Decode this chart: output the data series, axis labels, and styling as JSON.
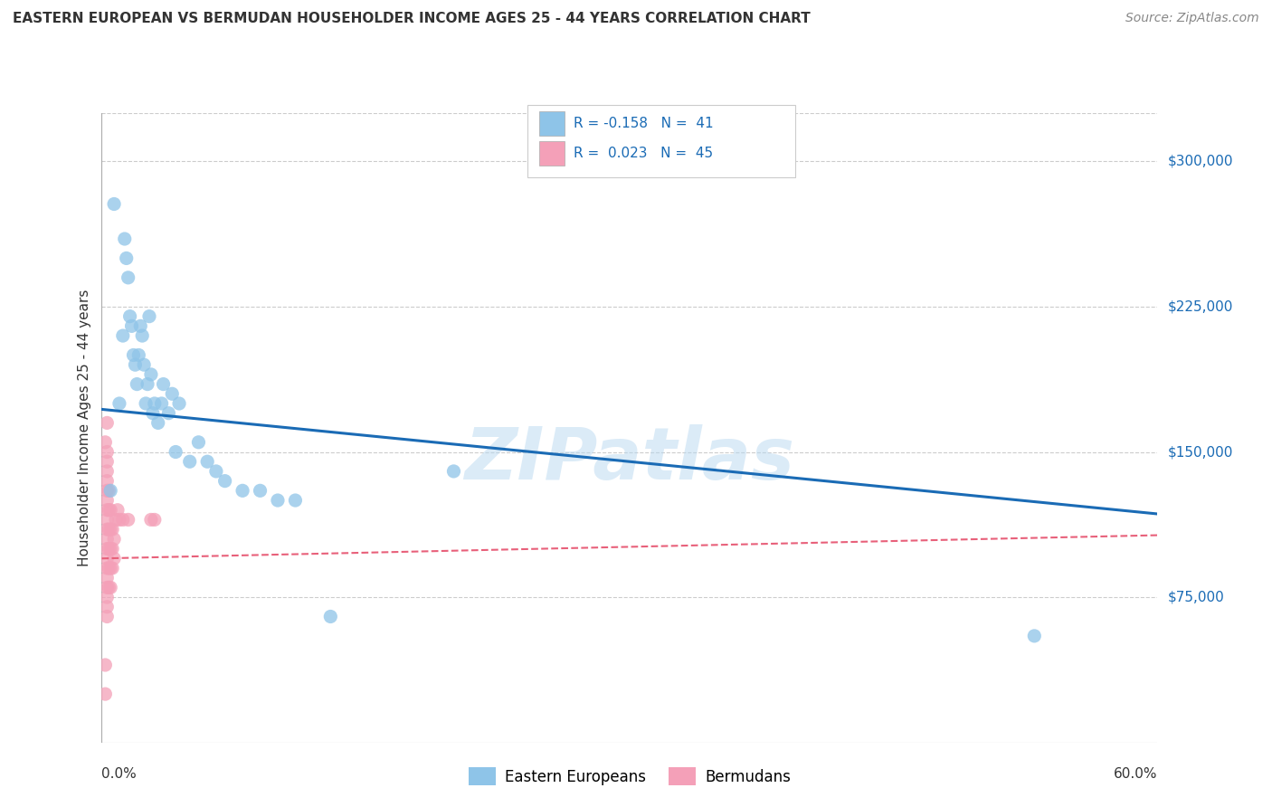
{
  "title": "EASTERN EUROPEAN VS BERMUDAN HOUSEHOLDER INCOME AGES 25 - 44 YEARS CORRELATION CHART",
  "source": "Source: ZipAtlas.com",
  "ylabel": "Householder Income Ages 25 - 44 years",
  "ytick_labels": [
    "$75,000",
    "$150,000",
    "$225,000",
    "$300,000"
  ],
  "ytick_values": [
    75000,
    150000,
    225000,
    300000
  ],
  "ylim": [
    0,
    325000
  ],
  "xlim": [
    0.0,
    0.6
  ],
  "legend_label1": "Eastern Europeans",
  "legend_label2": "Bermudans",
  "legend_R1": "R = -0.158",
  "legend_N1": "N =  41",
  "legend_R2": "R =  0.023",
  "legend_N2": "N =  45",
  "watermark": "ZIPatlas",
  "blue_color": "#8ec4e8",
  "pink_color": "#f4a0b8",
  "blue_line_color": "#1a6bb5",
  "pink_line_color": "#e8607a",
  "blue_scatter": [
    [
      0.005,
      130000
    ],
    [
      0.01,
      175000
    ],
    [
      0.012,
      210000
    ],
    [
      0.013,
      260000
    ],
    [
      0.014,
      250000
    ],
    [
      0.015,
      240000
    ],
    [
      0.016,
      220000
    ],
    [
      0.017,
      215000
    ],
    [
      0.018,
      200000
    ],
    [
      0.019,
      195000
    ],
    [
      0.02,
      185000
    ],
    [
      0.021,
      200000
    ],
    [
      0.022,
      215000
    ],
    [
      0.023,
      210000
    ],
    [
      0.024,
      195000
    ],
    [
      0.025,
      175000
    ],
    [
      0.026,
      185000
    ],
    [
      0.027,
      220000
    ],
    [
      0.028,
      190000
    ],
    [
      0.029,
      170000
    ],
    [
      0.03,
      175000
    ],
    [
      0.032,
      165000
    ],
    [
      0.034,
      175000
    ],
    [
      0.035,
      185000
    ],
    [
      0.038,
      170000
    ],
    [
      0.04,
      180000
    ],
    [
      0.042,
      150000
    ],
    [
      0.044,
      175000
    ],
    [
      0.05,
      145000
    ],
    [
      0.055,
      155000
    ],
    [
      0.06,
      145000
    ],
    [
      0.065,
      140000
    ],
    [
      0.07,
      135000
    ],
    [
      0.08,
      130000
    ],
    [
      0.09,
      130000
    ],
    [
      0.1,
      125000
    ],
    [
      0.11,
      125000
    ],
    [
      0.13,
      65000
    ],
    [
      0.2,
      140000
    ],
    [
      0.53,
      55000
    ],
    [
      0.007,
      278000
    ]
  ],
  "pink_scatter": [
    [
      0.002,
      155000
    ],
    [
      0.003,
      165000
    ],
    [
      0.003,
      150000
    ],
    [
      0.003,
      145000
    ],
    [
      0.003,
      140000
    ],
    [
      0.003,
      135000
    ],
    [
      0.003,
      130000
    ],
    [
      0.003,
      125000
    ],
    [
      0.003,
      120000
    ],
    [
      0.003,
      115000
    ],
    [
      0.003,
      110000
    ],
    [
      0.003,
      105000
    ],
    [
      0.003,
      100000
    ],
    [
      0.003,
      95000
    ],
    [
      0.003,
      90000
    ],
    [
      0.003,
      85000
    ],
    [
      0.003,
      80000
    ],
    [
      0.003,
      75000
    ],
    [
      0.003,
      70000
    ],
    [
      0.003,
      65000
    ],
    [
      0.004,
      130000
    ],
    [
      0.004,
      120000
    ],
    [
      0.004,
      110000
    ],
    [
      0.004,
      100000
    ],
    [
      0.004,
      90000
    ],
    [
      0.004,
      80000
    ],
    [
      0.005,
      120000
    ],
    [
      0.005,
      110000
    ],
    [
      0.005,
      100000
    ],
    [
      0.005,
      90000
    ],
    [
      0.005,
      80000
    ],
    [
      0.006,
      110000
    ],
    [
      0.006,
      100000
    ],
    [
      0.006,
      90000
    ],
    [
      0.007,
      105000
    ],
    [
      0.007,
      95000
    ],
    [
      0.008,
      115000
    ],
    [
      0.009,
      120000
    ],
    [
      0.01,
      115000
    ],
    [
      0.012,
      115000
    ],
    [
      0.015,
      115000
    ],
    [
      0.028,
      115000
    ],
    [
      0.03,
      115000
    ],
    [
      0.002,
      40000
    ],
    [
      0.002,
      25000
    ]
  ],
  "blue_line_x": [
    0.0,
    0.6
  ],
  "blue_line_y": [
    172000,
    118000
  ],
  "pink_line_x": [
    0.0,
    0.6
  ],
  "pink_line_y": [
    95000,
    107000
  ],
  "bg_color": "#ffffff",
  "grid_color": "#cccccc"
}
